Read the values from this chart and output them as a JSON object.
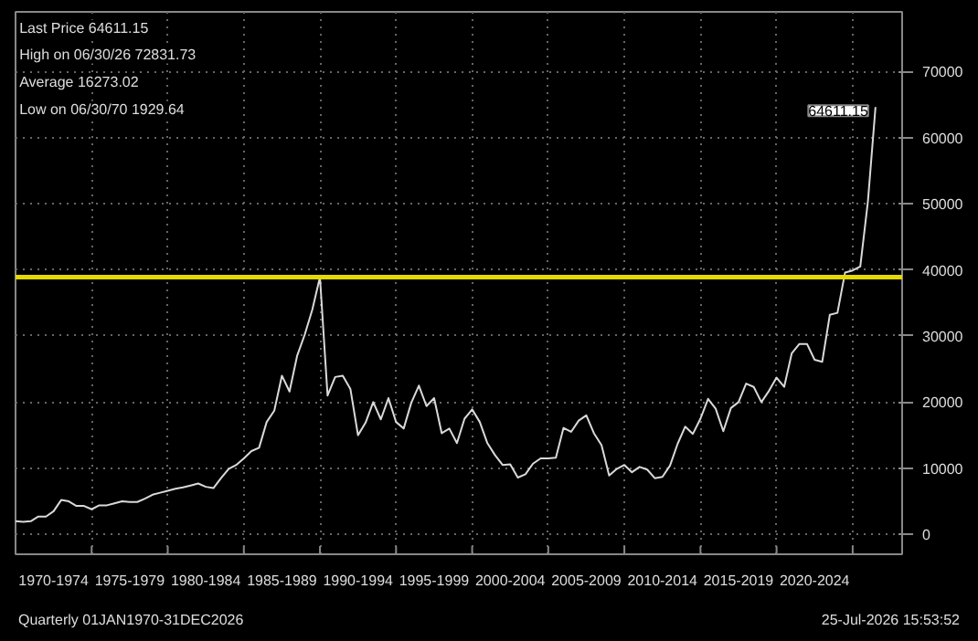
{
  "chart_data": {
    "type": "line",
    "categories": [
      null,
      null,
      null,
      null,
      null,
      "1970-1974",
      null,
      null,
      null,
      null,
      null,
      null,
      null,
      null,
      null,
      "1975-1979",
      null,
      null,
      null,
      null,
      null,
      null,
      null,
      null,
      null,
      "1980-1984",
      null,
      null,
      null,
      null,
      null,
      null,
      null,
      null,
      null,
      "1985-1989",
      null,
      null,
      null,
      null,
      null,
      null,
      null,
      null,
      null,
      "1990-1994",
      null,
      null,
      null,
      null,
      null,
      null,
      null,
      null,
      null,
      "1995-1999",
      null,
      null,
      null,
      null,
      null,
      null,
      null,
      null,
      null,
      "2000-2004",
      null,
      null,
      null,
      null,
      null,
      null,
      null,
      null,
      null,
      "2005-2009",
      null,
      null,
      null,
      null,
      null,
      null,
      null,
      null,
      null,
      "2010-2014",
      null,
      null,
      null,
      null,
      null,
      null,
      null,
      null,
      null,
      "2015-2019",
      null,
      null,
      null,
      null,
      null,
      null,
      null,
      null,
      null,
      "2020-2024",
      null,
      null,
      null,
      null,
      null,
      null,
      null,
      null
    ],
    "series": [
      {
        "color": "#d9d9d9",
        "values": [
          2000,
          1900,
          2000,
          2700,
          2700,
          3500,
          5200,
          5000,
          4300,
          4300,
          3800,
          4400,
          4400,
          4700,
          5000,
          4900,
          4900,
          5400,
          6000,
          6300,
          6600,
          6900,
          7100,
          7400,
          7700,
          7200,
          7000,
          8500,
          9900,
          10500,
          11500,
          12600,
          13100,
          17000,
          18700,
          24000,
          21600,
          27000,
          30200,
          34000,
          38900,
          21000,
          23800,
          24000,
          22000,
          15000,
          16900,
          20000,
          17400,
          20600,
          17000,
          16000,
          19900,
          22500,
          19400,
          20600,
          15300,
          16000,
          13800,
          17500,
          18900,
          17000,
          13800,
          12000,
          10500,
          10600,
          8600,
          9100,
          10700,
          11500,
          11500,
          11600,
          16100,
          15500,
          17200,
          18000,
          15300,
          13500,
          8900,
          9900,
          10500,
          9400,
          10200,
          9800,
          8500,
          8700,
          10400,
          13700,
          16300,
          15200,
          17500,
          20500,
          19000,
          15600,
          19100,
          20000,
          22800,
          22300,
          20000,
          21700,
          23700,
          22300,
          27400,
          28800,
          28800,
          26400,
          26100,
          33200,
          33500,
          39600,
          39900,
          40500,
          50300,
          64611.15
        ]
      }
    ],
    "ref_lines": [
      {
        "axis": "y",
        "value": 38900,
        "color": "#e6d800"
      }
    ],
    "ylim": [
      -3000,
      79000
    ],
    "yticks": [
      0,
      10000,
      20000,
      30000,
      40000,
      50000,
      60000,
      70000
    ],
    "grid": true,
    "annotations": [
      "Last Price 64611.15",
      "High on 06/30/26 72831.73",
      "Average 16273.02",
      "Low on 06/30/70 1929.64",
      "Quarterly 01JAN1970-31DEC2026",
      "25-Jul-2026 15:53:52",
      "64611.15"
    ]
  }
}
